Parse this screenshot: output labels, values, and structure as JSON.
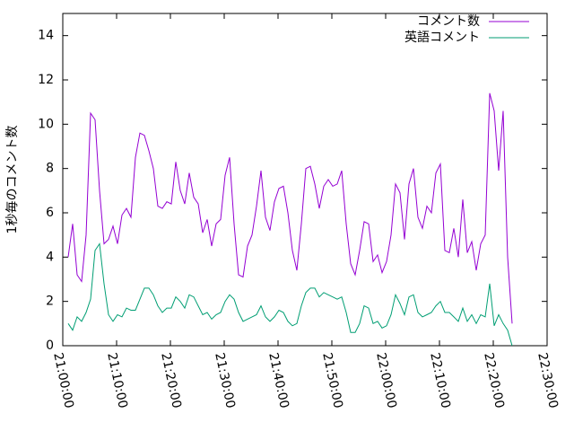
{
  "chart_data": {
    "type": "line",
    "y_label": "1秒毎のコメント数",
    "x": [
      "21:01:00",
      "21:01:50",
      "21:02:40",
      "21:03:30",
      "21:04:20",
      "21:05:10",
      "21:06:00",
      "21:06:50",
      "21:07:40",
      "21:08:30",
      "21:09:20",
      "21:10:10",
      "21:11:00",
      "21:11:50",
      "21:12:40",
      "21:13:30",
      "21:14:20",
      "21:15:10",
      "21:16:00",
      "21:16:50",
      "21:17:40",
      "21:18:30",
      "21:19:20",
      "21:20:10",
      "21:21:00",
      "21:21:50",
      "21:22:40",
      "21:23:30",
      "21:24:20",
      "21:25:10",
      "21:26:00",
      "21:26:50",
      "21:27:40",
      "21:28:30",
      "21:29:20",
      "21:30:10",
      "21:31:00",
      "21:31:50",
      "21:32:40",
      "21:33:30",
      "21:34:20",
      "21:35:10",
      "21:36:00",
      "21:36:50",
      "21:37:40",
      "21:38:30",
      "21:39:20",
      "21:40:10",
      "21:41:00",
      "21:41:50",
      "21:42:40",
      "21:43:30",
      "21:44:20",
      "21:45:10",
      "21:46:00",
      "21:46:50",
      "21:47:40",
      "21:48:30",
      "21:49:20",
      "21:50:10",
      "21:51:00",
      "21:51:50",
      "21:52:40",
      "21:53:30",
      "21:54:20",
      "21:55:10",
      "21:56:00",
      "21:56:50",
      "21:57:40",
      "21:58:30",
      "21:59:20",
      "22:00:10",
      "22:01:00",
      "22:01:50",
      "22:02:40",
      "22:03:30",
      "22:04:20",
      "22:05:10",
      "22:06:00",
      "22:06:50",
      "22:07:40",
      "22:08:30",
      "22:09:20",
      "22:10:10",
      "22:11:00",
      "22:11:50",
      "22:12:40",
      "22:13:30",
      "22:14:20",
      "22:15:10",
      "22:16:00",
      "22:16:50",
      "22:17:40",
      "22:18:30",
      "22:19:20",
      "22:20:10",
      "22:21:00",
      "22:21:50",
      "22:22:40",
      "22:23:30"
    ],
    "series": [
      {
        "name": "コメント数",
        "color": "#9400d3",
        "values": [
          4,
          5.5,
          3.2,
          2.9,
          5,
          10.5,
          10.2,
          7,
          4.6,
          4.8,
          5.4,
          4.6,
          5.9,
          6.2,
          5.8,
          8.5,
          9.6,
          9.5,
          8.8,
          8,
          6.3,
          6.2,
          6.5,
          6.4,
          8.3,
          7,
          6.4,
          7.8,
          6.7,
          6.4,
          5.1,
          5.7,
          4.5,
          5.5,
          5.7,
          7.7,
          8.5,
          5.5,
          3.2,
          3.1,
          4.5,
          5,
          6.3,
          7.9,
          5.8,
          5.2,
          6.5,
          7.1,
          7.2,
          6,
          4.3,
          3.4,
          5.5,
          8,
          8.1,
          7.3,
          6.2,
          7.2,
          7.5,
          7.2,
          7.3,
          7.9,
          5.5,
          3.7,
          3.2,
          4.3,
          5.6,
          5.5,
          3.8,
          4.1,
          3.3,
          3.8,
          5,
          7.3,
          6.9,
          4.8,
          7.3,
          8,
          5.8,
          5.3,
          6.3,
          6,
          7.8,
          8.2,
          4.3,
          4.2,
          5.3,
          4,
          6.6,
          4.2,
          4.7,
          3.4,
          4.6,
          5,
          11.4,
          10.6,
          7.9,
          10.6,
          4,
          1
        ]
      },
      {
        "name": "英語コメント",
        "color": "#009e73",
        "values": [
          1,
          0.7,
          1.3,
          1.1,
          1.5,
          2.1,
          4.3,
          4.6,
          2.8,
          1.4,
          1.1,
          1.4,
          1.3,
          1.7,
          1.6,
          1.6,
          2.1,
          2.6,
          2.6,
          2.3,
          1.8,
          1.5,
          1.7,
          1.7,
          2.2,
          2,
          1.7,
          2.3,
          2.2,
          1.8,
          1.4,
          1.5,
          1.2,
          1.4,
          1.5,
          2,
          2.3,
          2.1,
          1.5,
          1.1,
          1.2,
          1.3,
          1.4,
          1.8,
          1.3,
          1.1,
          1.3,
          1.6,
          1.5,
          1.1,
          0.9,
          1,
          1.8,
          2.4,
          2.6,
          2.6,
          2.2,
          2.4,
          2.3,
          2.2,
          2.1,
          2.2,
          1.5,
          0.6,
          0.6,
          1,
          1.8,
          1.7,
          1,
          1.1,
          0.8,
          0.9,
          1.4,
          2.3,
          1.9,
          1.4,
          2.2,
          2.3,
          1.5,
          1.3,
          1.4,
          1.5,
          1.8,
          2,
          1.5,
          1.5,
          1.3,
          1.1,
          1.7,
          1.1,
          1.4,
          1,
          1.4,
          1.3,
          2.8,
          0.9,
          1.4,
          1,
          0.7,
          0
        ]
      }
    ],
    "xlim": [
      "21:00:00",
      "22:30:00"
    ],
    "xticks": [
      "21:00:00",
      "21:10:00",
      "21:20:00",
      "21:30:00",
      "21:40:00",
      "21:50:00",
      "22:00:00",
      "22:10:00",
      "22:20:00",
      "22:30:00"
    ],
    "ylim": [
      0,
      15
    ],
    "yticks": [
      0,
      2,
      4,
      6,
      8,
      10,
      12,
      14
    ],
    "legend": "top-right"
  }
}
